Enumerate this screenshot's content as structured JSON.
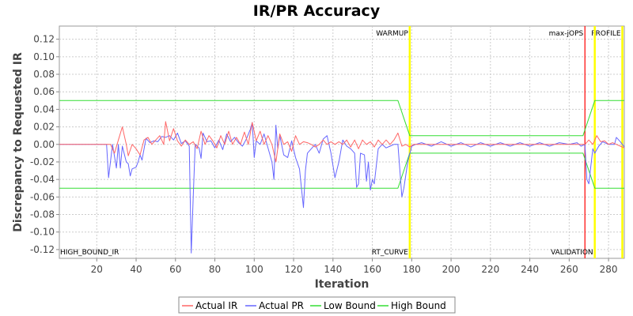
{
  "chart_data": {
    "type": "line",
    "title": "IR/PR Accuracy",
    "xlabel": "Iteration",
    "ylabel": "Discrepancy to Requested IR",
    "xlim": [
      1,
      288
    ],
    "ylim": [
      -0.13,
      0.135
    ],
    "x_ticks": [
      20,
      40,
      60,
      80,
      100,
      120,
      140,
      160,
      180,
      200,
      220,
      240,
      260,
      280
    ],
    "y_ticks": [
      -0.12,
      -0.1,
      -0.08,
      -0.06,
      -0.04,
      -0.02,
      0.0,
      0.02,
      0.04,
      0.06,
      0.08,
      0.1,
      0.12
    ],
    "grid": true,
    "legend_position": "bottom",
    "markers": [
      {
        "label": "WARMUP",
        "x": 179,
        "color": "#ffff00"
      },
      {
        "label": "max-jOPS",
        "x": 268,
        "color": "#ff0000"
      },
      {
        "label": "PROFILE",
        "x": 287,
        "color": "#ffff00"
      },
      {
        "label": "RT_CURVE",
        "x": 179,
        "color": "#ffff00"
      },
      {
        "label": "VALIDATION",
        "x": 273,
        "color": "#ffff00"
      },
      {
        "label": "HIGH_BOUND_IR",
        "x": 1,
        "color": "#ffff00"
      }
    ],
    "series": [
      {
        "name": "Actual IR",
        "color": "#ff6666",
        "points": [
          [
            1,
            0
          ],
          [
            25,
            0
          ],
          [
            27,
            0
          ],
          [
            29,
            -0.01
          ],
          [
            31,
            0.005
          ],
          [
            33,
            0.02
          ],
          [
            35,
            0
          ],
          [
            36,
            -0.013
          ],
          [
            38,
            0
          ],
          [
            40,
            -0.005
          ],
          [
            42,
            -0.012
          ],
          [
            44,
            0.005
          ],
          [
            46,
            0.008
          ],
          [
            48,
            0
          ],
          [
            50,
            0.005
          ],
          [
            52,
            0.01
          ],
          [
            54,
            0
          ],
          [
            55,
            0.026
          ],
          [
            57,
            0.004
          ],
          [
            59,
            0.018
          ],
          [
            61,
            0.004
          ],
          [
            63,
            -0.002
          ],
          [
            65,
            0.005
          ],
          [
            67,
            0
          ],
          [
            69,
            0.003
          ],
          [
            71,
            -0.005
          ],
          [
            73,
            0.015
          ],
          [
            75,
            0
          ],
          [
            77,
            0.01
          ],
          [
            79,
            0.004
          ],
          [
            81,
            -0.004
          ],
          [
            83,
            0.01
          ],
          [
            85,
            0
          ],
          [
            87,
            0.015
          ],
          [
            89,
            0
          ],
          [
            91,
            0.008
          ],
          [
            93,
            0
          ],
          [
            95,
            0.014
          ],
          [
            97,
            0
          ],
          [
            99,
            0.025
          ],
          [
            101,
            0.004
          ],
          [
            103,
            0.015
          ],
          [
            105,
            0
          ],
          [
            107,
            0.01
          ],
          [
            109,
            0
          ],
          [
            111,
            -0.02
          ],
          [
            113,
            0.012
          ],
          [
            115,
            0
          ],
          [
            117,
            0.003
          ],
          [
            119,
            -0.008
          ],
          [
            121,
            0.01
          ],
          [
            123,
            0
          ],
          [
            125,
            0.003
          ],
          [
            127,
            0.002
          ],
          [
            129,
            0
          ],
          [
            131,
            -0.003
          ],
          [
            133,
            0
          ],
          [
            135,
            0.005
          ],
          [
            137,
            0
          ],
          [
            139,
            0.003
          ],
          [
            141,
            0
          ],
          [
            143,
            0.003
          ],
          [
            145,
            0
          ],
          [
            147,
            0.005
          ],
          [
            149,
            -0.003
          ],
          [
            151,
            0.005
          ],
          [
            153,
            -0.005
          ],
          [
            155,
            0.005
          ],
          [
            157,
            0
          ],
          [
            159,
            0.003
          ],
          [
            161,
            -0.003
          ],
          [
            163,
            0.005
          ],
          [
            165,
            0
          ],
          [
            167,
            0.005
          ],
          [
            169,
            0
          ],
          [
            171,
            0.005
          ],
          [
            173,
            0.013
          ],
          [
            175,
            -0.002
          ],
          [
            177,
            0
          ],
          [
            179,
            -0.003
          ],
          [
            181,
            0
          ],
          [
            200,
            0
          ],
          [
            220,
            0
          ],
          [
            240,
            0
          ],
          [
            260,
            0
          ],
          [
            266,
            0
          ],
          [
            268,
            0
          ],
          [
            270,
            0.005
          ],
          [
            272,
            0
          ],
          [
            274,
            0.01
          ],
          [
            276,
            0.003
          ],
          [
            278,
            0.004
          ],
          [
            280,
            0
          ],
          [
            282,
            0.002
          ],
          [
            284,
            0
          ],
          [
            286,
            -0.002
          ],
          [
            288,
            -0.004
          ]
        ]
      },
      {
        "name": "Actual PR",
        "color": "#6666ff",
        "points": [
          [
            1,
            0
          ],
          [
            25,
            0
          ],
          [
            26,
            -0.038
          ],
          [
            28,
            0
          ],
          [
            30,
            -0.027
          ],
          [
            31,
            0
          ],
          [
            32,
            -0.027
          ],
          [
            33,
            -0.002
          ],
          [
            35,
            -0.02
          ],
          [
            36,
            -0.022
          ],
          [
            37,
            -0.036
          ],
          [
            38,
            -0.028
          ],
          [
            40,
            -0.026
          ],
          [
            41,
            -0.02
          ],
          [
            42,
            -0.012
          ],
          [
            43,
            -0.018
          ],
          [
            45,
            0.007
          ],
          [
            47,
            0.002
          ],
          [
            49,
            0.004
          ],
          [
            51,
            0.003
          ],
          [
            53,
            0.009
          ],
          [
            55,
            0.008
          ],
          [
            57,
            0.01
          ],
          [
            59,
            0.005
          ],
          [
            61,
            0.013
          ],
          [
            63,
            0.001
          ],
          [
            65,
            0.004
          ],
          [
            67,
            -0.002
          ],
          [
            68,
            -0.124
          ],
          [
            69,
            -0.06
          ],
          [
            70,
            0
          ],
          [
            72,
            -0.004
          ],
          [
            73,
            -0.016
          ],
          [
            74,
            0.013
          ],
          [
            76,
            0.003
          ],
          [
            78,
            0.004
          ],
          [
            80,
            -0.004
          ],
          [
            82,
            0.005
          ],
          [
            84,
            -0.006
          ],
          [
            86,
            0.012
          ],
          [
            88,
            0.003
          ],
          [
            90,
            0.008
          ],
          [
            92,
            0.002
          ],
          [
            94,
            -0.002
          ],
          [
            96,
            0.006
          ],
          [
            98,
            0.017
          ],
          [
            99,
            0.025
          ],
          [
            100,
            -0.015
          ],
          [
            101,
            0.004
          ],
          [
            103,
            0
          ],
          [
            105,
            0.012
          ],
          [
            107,
            -0.004
          ],
          [
            109,
            -0.02
          ],
          [
            110,
            -0.04
          ],
          [
            111,
            0.022
          ],
          [
            112,
            -0.005
          ],
          [
            113,
            0.01
          ],
          [
            115,
            -0.012
          ],
          [
            117,
            -0.015
          ],
          [
            119,
            0.004
          ],
          [
            121,
            -0.015
          ],
          [
            123,
            -0.028
          ],
          [
            125,
            -0.072
          ],
          [
            126,
            -0.03
          ],
          [
            127,
            -0.01
          ],
          [
            129,
            -0.005
          ],
          [
            131,
            0
          ],
          [
            133,
            -0.01
          ],
          [
            135,
            0.006
          ],
          [
            137,
            0.01
          ],
          [
            139,
            -0.01
          ],
          [
            141,
            -0.038
          ],
          [
            143,
            -0.02
          ],
          [
            145,
            0.005
          ],
          [
            147,
            -0.002
          ],
          [
            149,
            -0.005
          ],
          [
            151,
            -0.01
          ],
          [
            152,
            -0.049
          ],
          [
            153,
            -0.045
          ],
          [
            154,
            -0.01
          ],
          [
            156,
            -0.012
          ],
          [
            157,
            -0.042
          ],
          [
            158,
            -0.02
          ],
          [
            159,
            -0.052
          ],
          [
            160,
            -0.04
          ],
          [
            161,
            -0.045
          ],
          [
            163,
            -0.005
          ],
          [
            165,
            0
          ],
          [
            167,
            -0.004
          ],
          [
            169,
            -0.002
          ],
          [
            171,
            0
          ],
          [
            173,
            0
          ],
          [
            175,
            -0.06
          ],
          [
            176,
            -0.05
          ],
          [
            178,
            -0.02
          ],
          [
            180,
            -0.002
          ],
          [
            182,
            0
          ],
          [
            185,
            0.002
          ],
          [
            190,
            -0.002
          ],
          [
            195,
            0.003
          ],
          [
            200,
            -0.002
          ],
          [
            205,
            0.002
          ],
          [
            210,
            -0.003
          ],
          [
            215,
            0.002
          ],
          [
            220,
            -0.002
          ],
          [
            225,
            0.002
          ],
          [
            230,
            -0.002
          ],
          [
            235,
            0.002
          ],
          [
            240,
            -0.002
          ],
          [
            245,
            0.002
          ],
          [
            250,
            -0.002
          ],
          [
            255,
            0.002
          ],
          [
            260,
            0
          ],
          [
            264,
            0.002
          ],
          [
            266,
            -0.002
          ],
          [
            268,
            0
          ],
          [
            269,
            -0.04
          ],
          [
            270,
            -0.045
          ],
          [
            272,
            -0.005
          ],
          [
            273,
            -0.01
          ],
          [
            275,
            -0.002
          ],
          [
            277,
            0.003
          ],
          [
            280,
            0
          ],
          [
            283,
            0
          ],
          [
            284,
            0.008
          ],
          [
            286,
            0.003
          ],
          [
            288,
            -0.003
          ]
        ]
      },
      {
        "name": "Low Bound",
        "color": "#33dd33",
        "points": [
          [
            1,
            -0.05
          ],
          [
            173,
            -0.05
          ],
          [
            179,
            -0.01
          ],
          [
            267,
            -0.01
          ],
          [
            273,
            -0.05
          ],
          [
            288,
            -0.05
          ]
        ]
      },
      {
        "name": "High Bound",
        "color": "#33dd33",
        "points": [
          [
            1,
            0.05
          ],
          [
            173,
            0.05
          ],
          [
            179,
            0.01
          ],
          [
            267,
            0.01
          ],
          [
            273,
            0.05
          ],
          [
            288,
            0.05
          ]
        ]
      }
    ]
  },
  "legend": {
    "items": [
      "Actual IR",
      "Actual PR",
      "Low Bound",
      "High Bound"
    ]
  }
}
